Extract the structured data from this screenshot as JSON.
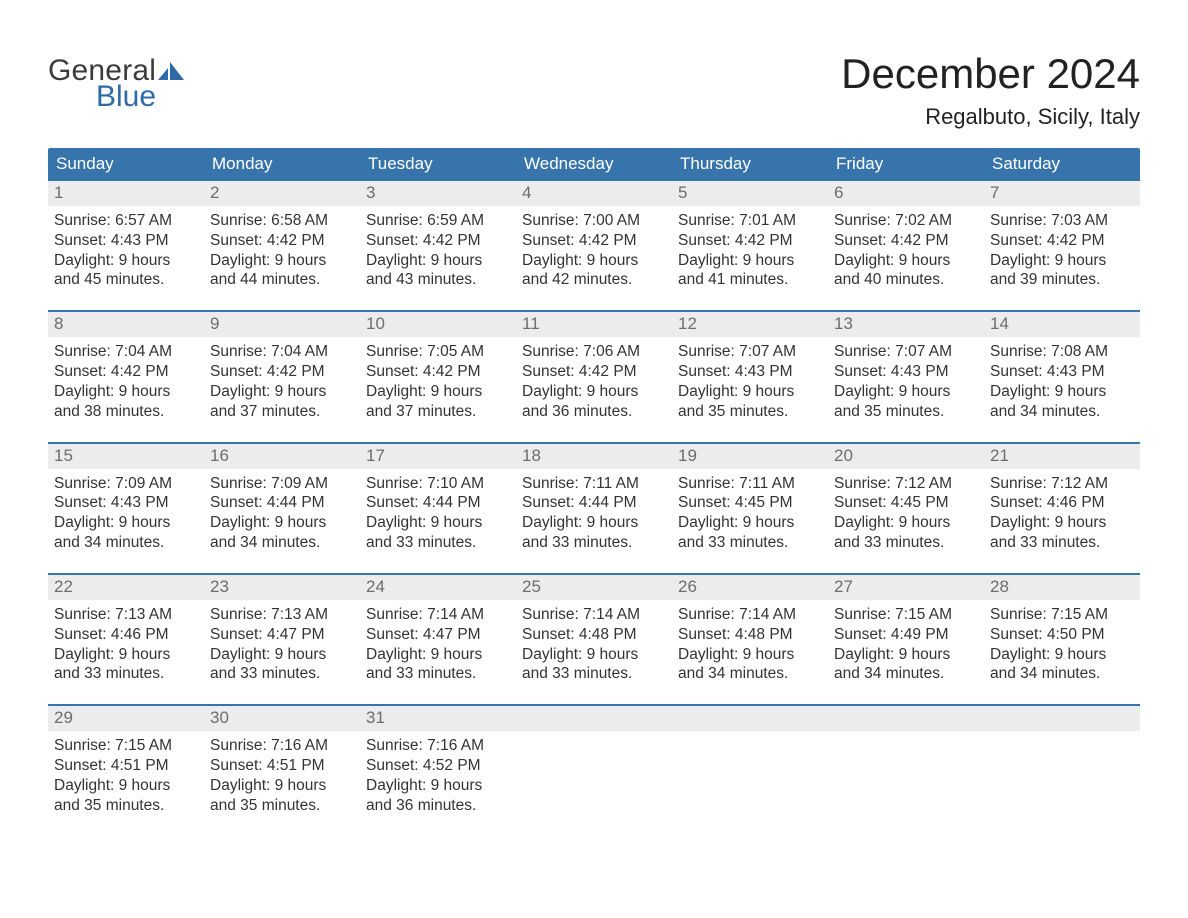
{
  "logo": {
    "word1": "General",
    "word2": "Blue",
    "mark_color": "#2f6aa8",
    "word1_color": "#3b3b3b",
    "word2_color": "#2f6aa8"
  },
  "title": "December 2024",
  "location": "Regalbuto, Sicily, Italy",
  "colors": {
    "header_bg": "#3874ac",
    "header_text": "#ffffff",
    "row_accent": "#3874ac",
    "daynum_bg": "#ececec",
    "daynum_text": "#6d6d6d",
    "body_text": "#333333",
    "page_bg": "#ffffff"
  },
  "typography": {
    "title_fontsize": 42,
    "location_fontsize": 22,
    "dow_fontsize": 17,
    "daynum_fontsize": 17,
    "body_fontsize": 15.5,
    "font_family": "Arial"
  },
  "days_of_week": [
    "Sunday",
    "Monday",
    "Tuesday",
    "Wednesday",
    "Thursday",
    "Friday",
    "Saturday"
  ],
  "labels": {
    "sunrise": "Sunrise:",
    "sunset": "Sunset:",
    "daylight": "Daylight:"
  },
  "weeks": [
    [
      {
        "n": "1",
        "sunrise": "6:57 AM",
        "sunset": "4:43 PM",
        "dl1": "9 hours",
        "dl2": "and 45 minutes."
      },
      {
        "n": "2",
        "sunrise": "6:58 AM",
        "sunset": "4:42 PM",
        "dl1": "9 hours",
        "dl2": "and 44 minutes."
      },
      {
        "n": "3",
        "sunrise": "6:59 AM",
        "sunset": "4:42 PM",
        "dl1": "9 hours",
        "dl2": "and 43 minutes."
      },
      {
        "n": "4",
        "sunrise": "7:00 AM",
        "sunset": "4:42 PM",
        "dl1": "9 hours",
        "dl2": "and 42 minutes."
      },
      {
        "n": "5",
        "sunrise": "7:01 AM",
        "sunset": "4:42 PM",
        "dl1": "9 hours",
        "dl2": "and 41 minutes."
      },
      {
        "n": "6",
        "sunrise": "7:02 AM",
        "sunset": "4:42 PM",
        "dl1": "9 hours",
        "dl2": "and 40 minutes."
      },
      {
        "n": "7",
        "sunrise": "7:03 AM",
        "sunset": "4:42 PM",
        "dl1": "9 hours",
        "dl2": "and 39 minutes."
      }
    ],
    [
      {
        "n": "8",
        "sunrise": "7:04 AM",
        "sunset": "4:42 PM",
        "dl1": "9 hours",
        "dl2": "and 38 minutes."
      },
      {
        "n": "9",
        "sunrise": "7:04 AM",
        "sunset": "4:42 PM",
        "dl1": "9 hours",
        "dl2": "and 37 minutes."
      },
      {
        "n": "10",
        "sunrise": "7:05 AM",
        "sunset": "4:42 PM",
        "dl1": "9 hours",
        "dl2": "and 37 minutes."
      },
      {
        "n": "11",
        "sunrise": "7:06 AM",
        "sunset": "4:42 PM",
        "dl1": "9 hours",
        "dl2": "and 36 minutes."
      },
      {
        "n": "12",
        "sunrise": "7:07 AM",
        "sunset": "4:43 PM",
        "dl1": "9 hours",
        "dl2": "and 35 minutes."
      },
      {
        "n": "13",
        "sunrise": "7:07 AM",
        "sunset": "4:43 PM",
        "dl1": "9 hours",
        "dl2": "and 35 minutes."
      },
      {
        "n": "14",
        "sunrise": "7:08 AM",
        "sunset": "4:43 PM",
        "dl1": "9 hours",
        "dl2": "and 34 minutes."
      }
    ],
    [
      {
        "n": "15",
        "sunrise": "7:09 AM",
        "sunset": "4:43 PM",
        "dl1": "9 hours",
        "dl2": "and 34 minutes."
      },
      {
        "n": "16",
        "sunrise": "7:09 AM",
        "sunset": "4:44 PM",
        "dl1": "9 hours",
        "dl2": "and 34 minutes."
      },
      {
        "n": "17",
        "sunrise": "7:10 AM",
        "sunset": "4:44 PM",
        "dl1": "9 hours",
        "dl2": "and 33 minutes."
      },
      {
        "n": "18",
        "sunrise": "7:11 AM",
        "sunset": "4:44 PM",
        "dl1": "9 hours",
        "dl2": "and 33 minutes."
      },
      {
        "n": "19",
        "sunrise": "7:11 AM",
        "sunset": "4:45 PM",
        "dl1": "9 hours",
        "dl2": "and 33 minutes."
      },
      {
        "n": "20",
        "sunrise": "7:12 AM",
        "sunset": "4:45 PM",
        "dl1": "9 hours",
        "dl2": "and 33 minutes."
      },
      {
        "n": "21",
        "sunrise": "7:12 AM",
        "sunset": "4:46 PM",
        "dl1": "9 hours",
        "dl2": "and 33 minutes."
      }
    ],
    [
      {
        "n": "22",
        "sunrise": "7:13 AM",
        "sunset": "4:46 PM",
        "dl1": "9 hours",
        "dl2": "and 33 minutes."
      },
      {
        "n": "23",
        "sunrise": "7:13 AM",
        "sunset": "4:47 PM",
        "dl1": "9 hours",
        "dl2": "and 33 minutes."
      },
      {
        "n": "24",
        "sunrise": "7:14 AM",
        "sunset": "4:47 PM",
        "dl1": "9 hours",
        "dl2": "and 33 minutes."
      },
      {
        "n": "25",
        "sunrise": "7:14 AM",
        "sunset": "4:48 PM",
        "dl1": "9 hours",
        "dl2": "and 33 minutes."
      },
      {
        "n": "26",
        "sunrise": "7:14 AM",
        "sunset": "4:48 PM",
        "dl1": "9 hours",
        "dl2": "and 34 minutes."
      },
      {
        "n": "27",
        "sunrise": "7:15 AM",
        "sunset": "4:49 PM",
        "dl1": "9 hours",
        "dl2": "and 34 minutes."
      },
      {
        "n": "28",
        "sunrise": "7:15 AM",
        "sunset": "4:50 PM",
        "dl1": "9 hours",
        "dl2": "and 34 minutes."
      }
    ],
    [
      {
        "n": "29",
        "sunrise": "7:15 AM",
        "sunset": "4:51 PM",
        "dl1": "9 hours",
        "dl2": "and 35 minutes."
      },
      {
        "n": "30",
        "sunrise": "7:16 AM",
        "sunset": "4:51 PM",
        "dl1": "9 hours",
        "dl2": "and 35 minutes."
      },
      {
        "n": "31",
        "sunrise": "7:16 AM",
        "sunset": "4:52 PM",
        "dl1": "9 hours",
        "dl2": "and 36 minutes."
      },
      {
        "n": "",
        "empty": true
      },
      {
        "n": "",
        "empty": true
      },
      {
        "n": "",
        "empty": true
      },
      {
        "n": "",
        "empty": true
      }
    ]
  ]
}
